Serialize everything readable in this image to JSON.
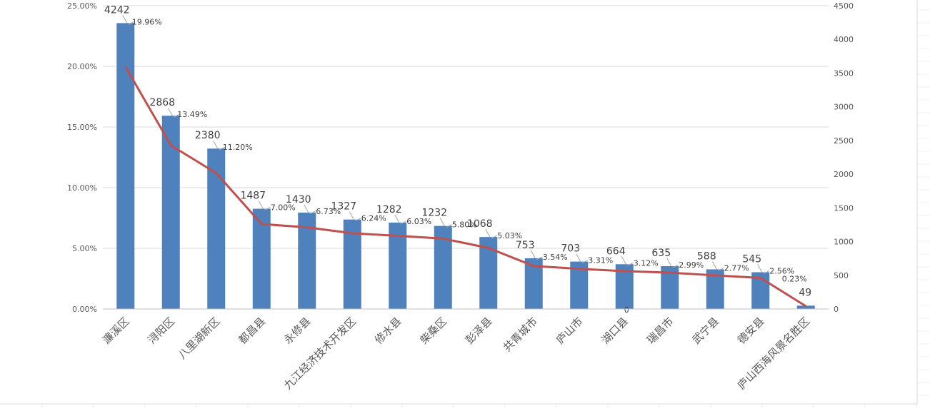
{
  "chart_data": {
    "type": "bar",
    "categories": [
      "濂溪区",
      "浔阳区",
      "八里湖新区",
      "都昌县",
      "永修县",
      "九江经济技术开发区",
      "修水县",
      "柴桑区",
      "彭泽县",
      "共青城市",
      "庐山市",
      "湖口县",
      "瑞昌市",
      "武宁县",
      "德安县",
      "庐山西海风景名胜区"
    ],
    "series": [
      {
        "type": "bar",
        "axis": "right",
        "values": [
          4242,
          2868,
          2380,
          1487,
          1430,
          1327,
          1282,
          1232,
          1068,
          753,
          703,
          664,
          635,
          588,
          545,
          49
        ],
        "labels": [
          "4242",
          "2868",
          "2380",
          "1487",
          "1430",
          "1327",
          "1282",
          "1232",
          "1068",
          "753",
          "703",
          "664",
          "635",
          "588",
          "545",
          "49"
        ],
        "color": "#4f81bd"
      },
      {
        "type": "line",
        "axis": "left",
        "values": [
          19.96,
          13.49,
          11.2,
          7.0,
          6.73,
          6.24,
          6.03,
          5.8,
          5.03,
          3.54,
          3.31,
          3.12,
          2.99,
          2.77,
          2.56,
          0.23
        ],
        "labels": [
          "19.96%",
          "13.49%",
          "11.20%",
          "7.00%",
          "6.73%",
          "6.24%",
          "6.03%",
          "5.80%",
          "5.03%",
          "3.54%",
          "3.31%",
          "3.12%",
          "2.99%",
          "2.77%",
          "2.56%",
          "0.23%"
        ],
        "color": "#c0504d"
      }
    ],
    "left_axis": {
      "ylim": [
        0,
        25
      ],
      "ticks": [
        0,
        5,
        10,
        15,
        20,
        25
      ],
      "tick_labels": [
        "0.00%",
        "5.00%",
        "10.00%",
        "15.00%",
        "20.00%",
        "25.00%"
      ]
    },
    "right_axis": {
      "ylim": [
        0,
        4500
      ],
      "ticks": [
        0,
        500,
        1000,
        1500,
        2000,
        2500,
        3000,
        3500,
        4000,
        4500
      ],
      "tick_labels": [
        "0",
        "500",
        "1000",
        "1500",
        "2000",
        "2500",
        "3000",
        "3500",
        "4000",
        "4500"
      ]
    },
    "extra_labels": [
      "0"
    ],
    "grid": true,
    "legend": "none",
    "title": "",
    "xlabel": "",
    "ylabel": ""
  }
}
